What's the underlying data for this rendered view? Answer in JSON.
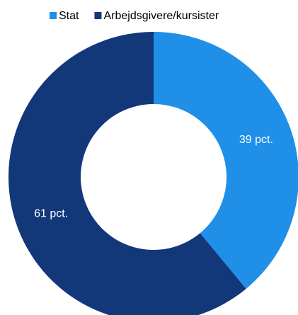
{
  "chart_data": {
    "type": "donut",
    "categories": [
      "Stat",
      "Arbejdsgivere/kursister"
    ],
    "values": [
      39,
      61
    ],
    "value_labels": [
      "39 pct.",
      "61 pct."
    ],
    "colors": [
      "#1f8fe8",
      "#12387a"
    ],
    "legend": "top"
  }
}
